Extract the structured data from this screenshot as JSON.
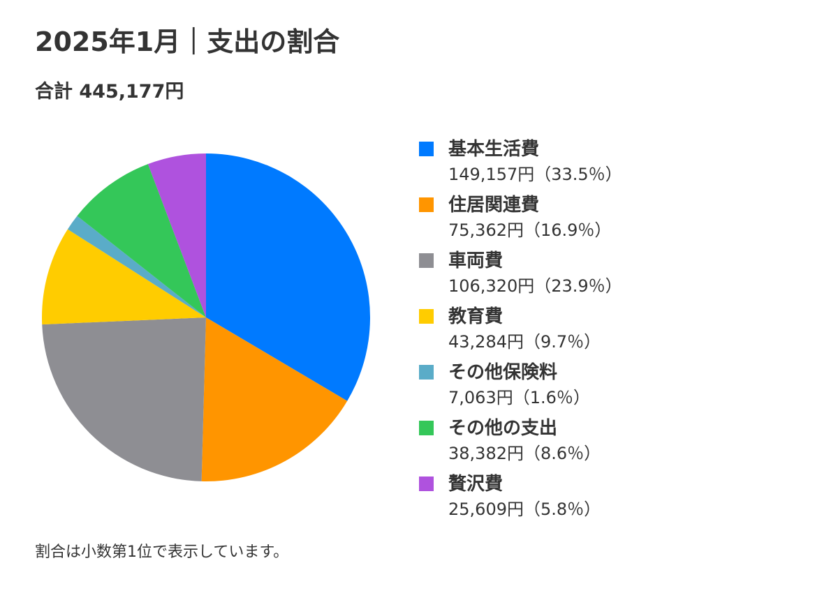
{
  "header": {
    "title": "2025年1月｜支出の割合",
    "total": "合計 445,177円"
  },
  "chart_data": {
    "type": "pie",
    "title": "2025年1月｜支出の割合",
    "start_angle": "12 o'clock",
    "direction": "clockwise",
    "legend_position": "right",
    "slices": [
      {
        "label": "基本生活費",
        "value": 149157,
        "percent": 33.5,
        "color": "#007AFF",
        "display": "149,157円（33.5％）"
      },
      {
        "label": "住居関連費",
        "value": 75362,
        "percent": 16.9,
        "color": "#FF9500",
        "display": "75,362円（16.9％）"
      },
      {
        "label": "車両費",
        "value": 106320,
        "percent": 23.9,
        "color": "#8E8E93",
        "display": "106,320円（23.9％）"
      },
      {
        "label": "教育費",
        "value": 43284,
        "percent": 9.7,
        "color": "#FFCC00",
        "display": "43,284円（9.7％）"
      },
      {
        "label": "その他保険料",
        "value": 7063,
        "percent": 1.6,
        "color": "#5AACC8",
        "display": "7,063円（1.6％）"
      },
      {
        "label": "その他の支出",
        "value": 38382,
        "percent": 8.6,
        "color": "#34C759",
        "display": "38,382円（8.6％）"
      },
      {
        "label": "贅沢費",
        "value": 25609,
        "percent": 5.8,
        "color": "#AF52DE",
        "display": "25,609円（5.8％）"
      }
    ]
  },
  "footer": {
    "note": "割合は小数第1位で表示しています。"
  }
}
